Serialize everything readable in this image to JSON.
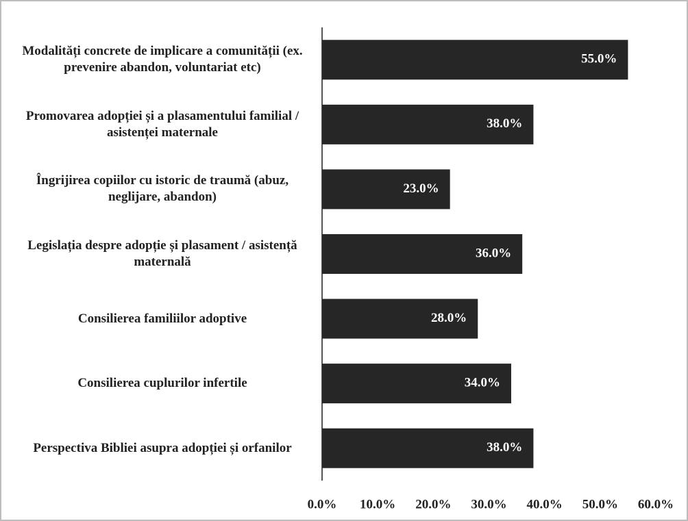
{
  "chart_data": {
    "type": "barh",
    "categories": [
      "Modalități concrete de implicare a comunității (ex. prevenire abandon, voluntariat etc)",
      "Promovarea adopției și a plasamentului familial / asistenței maternale",
      "Îngrijirea copiilor cu istoric de traumă (abuz, neglijare, abandon)",
      "Legislația despre adopție și plasament / asistență maternală",
      "Consilierea familiilor adoptive",
      "Consilierea cuplurilor infertile",
      "Perspectiva Bibliei asupra adopției și orfanilor"
    ],
    "values": [
      55,
      38,
      23,
      36,
      28,
      34,
      38
    ],
    "value_labels": [
      "55.0%",
      "38.0%",
      "23.0%",
      "36.0%",
      "28.0%",
      "34.0%",
      "38.0%"
    ],
    "color": "#262626",
    "xlim": [
      0,
      60
    ],
    "xticks": [
      {
        "value": 0,
        "label": "0.0%"
      },
      {
        "value": 10,
        "label": "10.0%"
      },
      {
        "value": 20,
        "label": "20.0%"
      },
      {
        "value": 30,
        "label": "30.0%"
      },
      {
        "value": 40,
        "label": "40.0%"
      },
      {
        "value": 50,
        "label": "50.0%"
      },
      {
        "value": 60,
        "label": "60.0%"
      }
    ],
    "grid": false
  }
}
